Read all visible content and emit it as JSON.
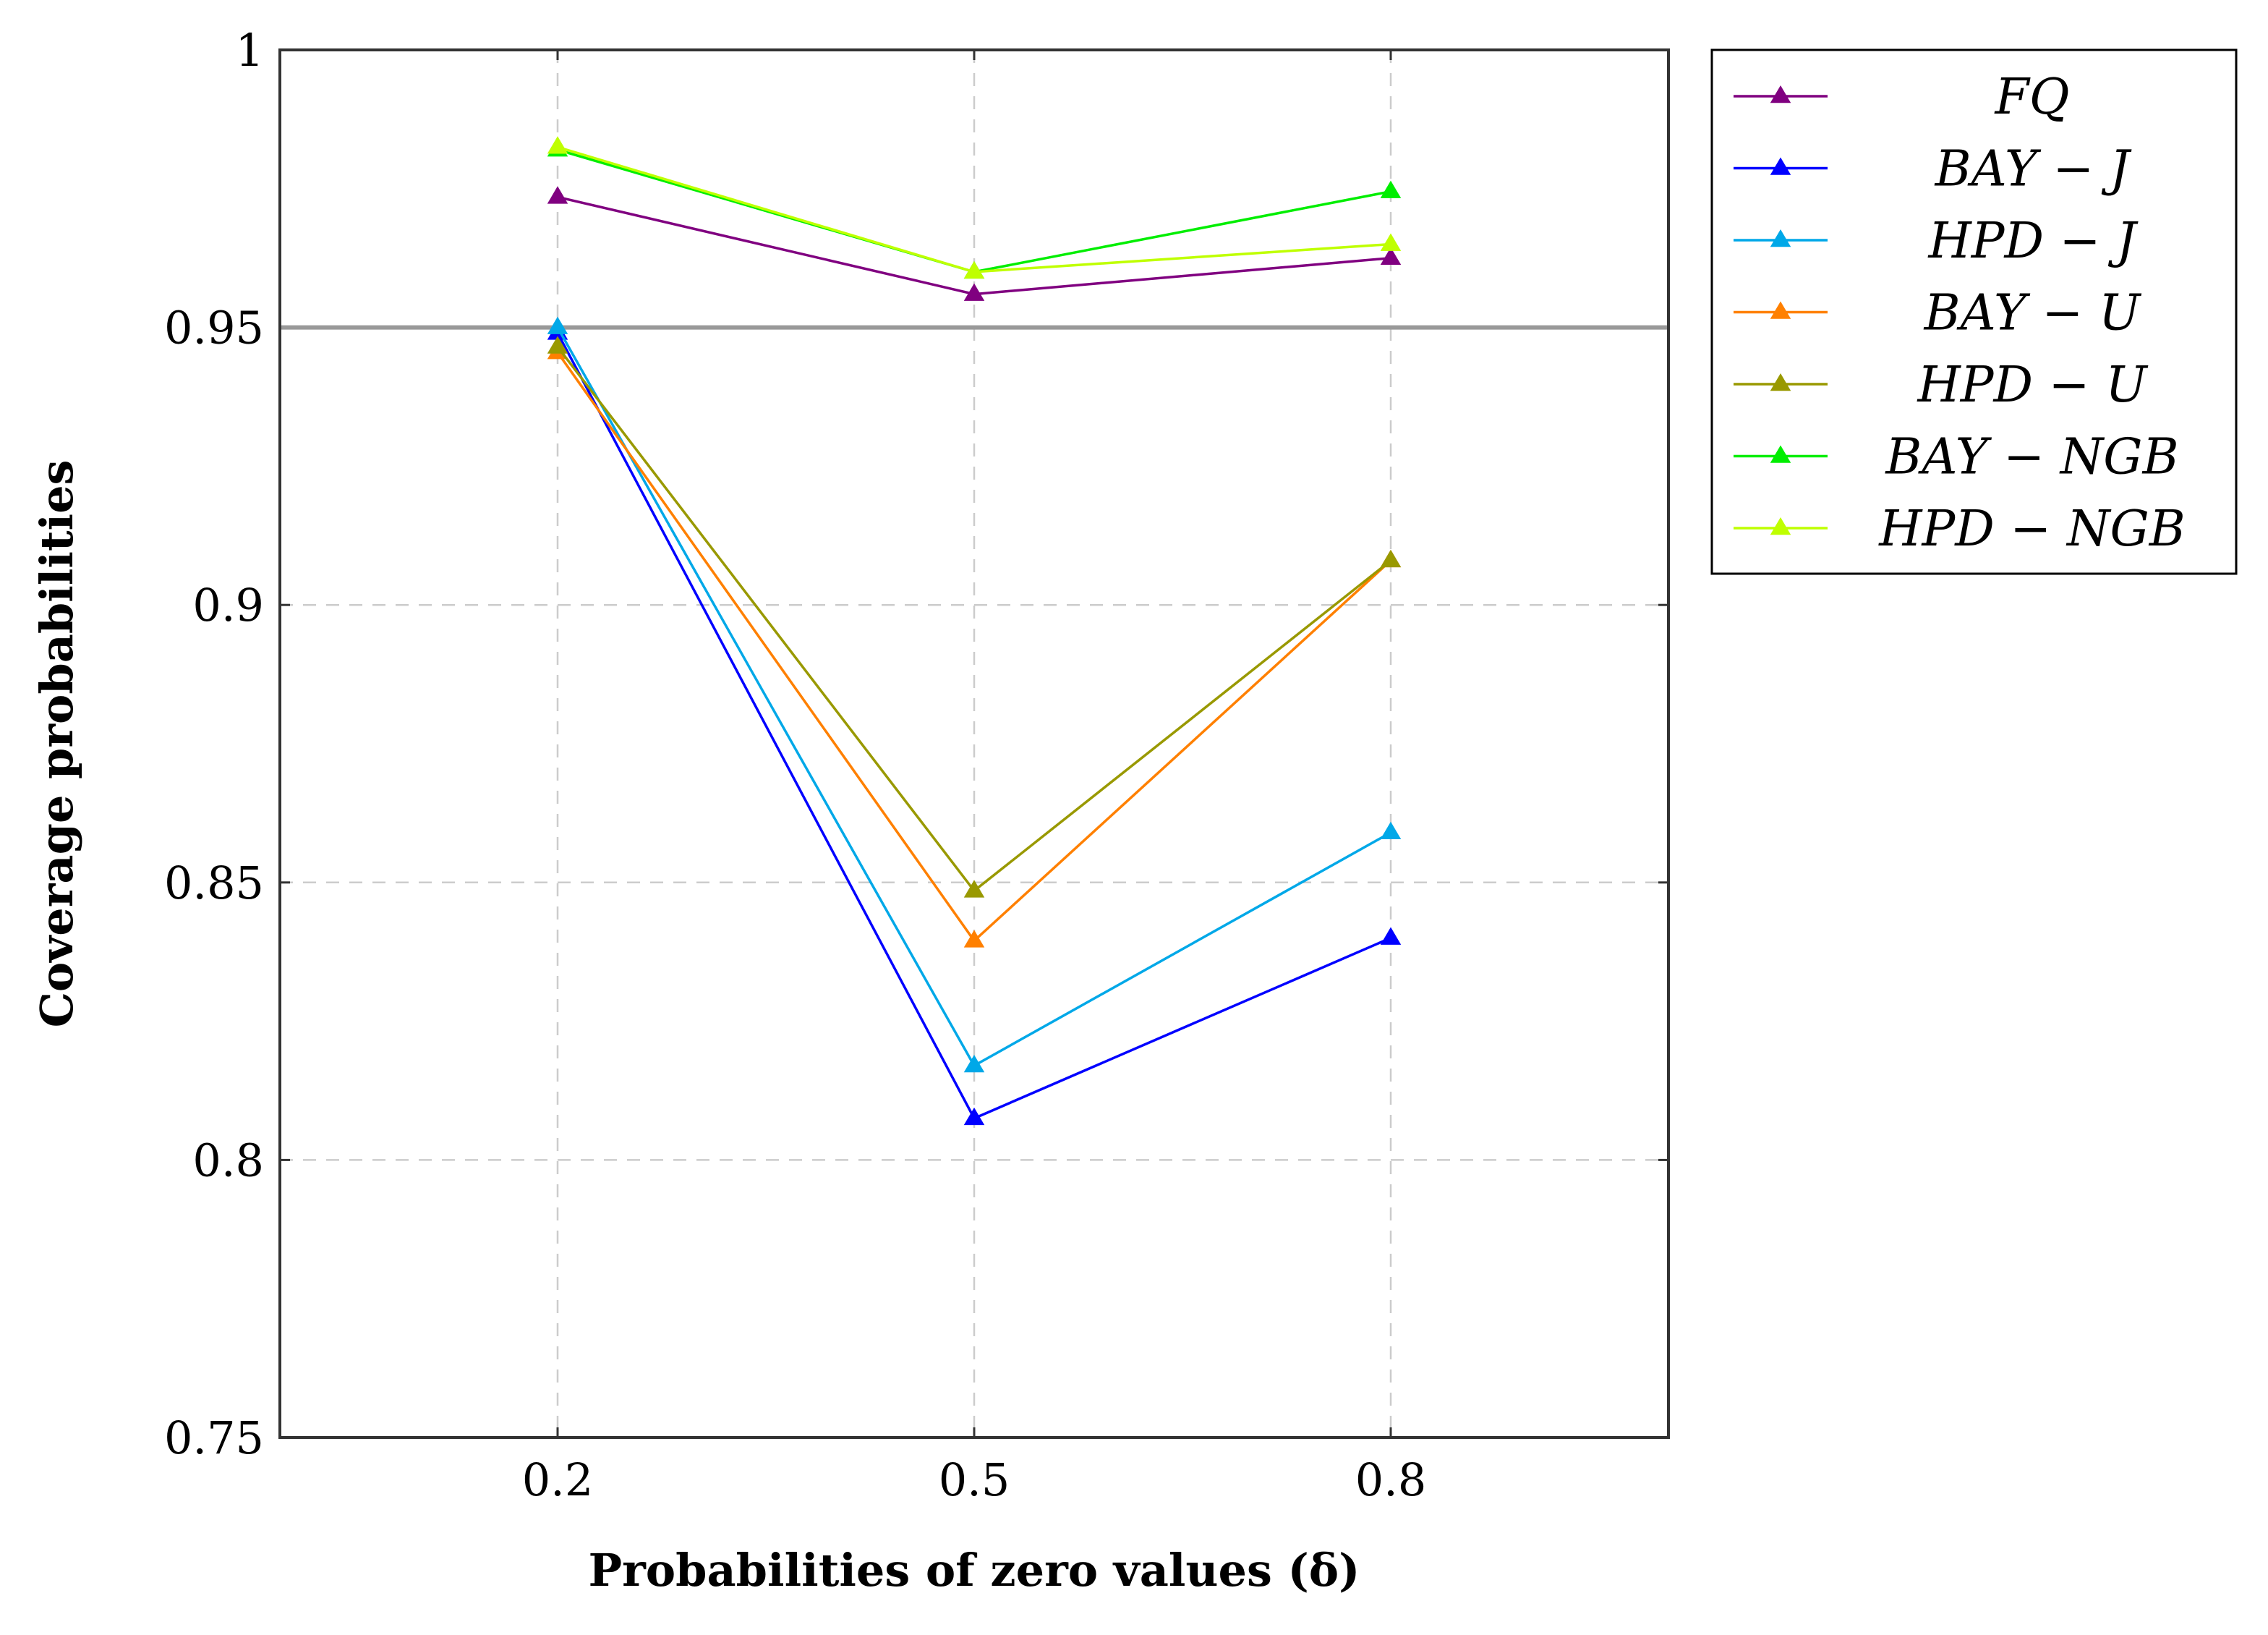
{
  "chart_data": {
    "type": "line",
    "x": [
      0.2,
      0.5,
      0.8
    ],
    "xticks": [
      "0.2",
      "0.5",
      "0.8"
    ],
    "yticks": [
      {
        "value": 0.75,
        "label": "0.75"
      },
      {
        "value": 0.8,
        "label": "0.8"
      },
      {
        "value": 0.85,
        "label": "0.85"
      },
      {
        "value": 0.9,
        "label": "0.9"
      },
      {
        "value": 0.95,
        "label": "0.95"
      },
      {
        "value": 1.0,
        "label": "1"
      }
    ],
    "xlim": [
      0.0,
      1.0
    ],
    "ylim": [
      0.75,
      1.0
    ],
    "xlabel": "Probabilities of zero values (δ)",
    "ylabel": "Coverage probabilities",
    "reference_line": {
      "y": 0.95,
      "color": "#999999"
    },
    "grid": true,
    "legend_position": "outside-right-top",
    "series": [
      {
        "name": "FQ",
        "label": "FQ",
        "color": "#800080",
        "values": [
          0.9735,
          0.956,
          0.9625
        ]
      },
      {
        "name": "BAY-J",
        "label": "BAY − J",
        "color": "#0000ff",
        "values": [
          0.949,
          0.8075,
          0.84
        ]
      },
      {
        "name": "HPD-J",
        "label": "HPD − J",
        "color": "#00a8e8",
        "values": [
          0.95,
          0.817,
          0.859
        ]
      },
      {
        "name": "BAY-U",
        "label": "BAY − U",
        "color": "#ff8000",
        "values": [
          0.9455,
          0.8395,
          0.908
        ]
      },
      {
        "name": "HPD-U",
        "label": "HPD − U",
        "color": "#999900",
        "values": [
          0.9465,
          0.8485,
          0.908
        ]
      },
      {
        "name": "BAY-NGB",
        "label": "BAY − NGB",
        "color": "#00ee00",
        "values": [
          0.982,
          0.96,
          0.9745
        ]
      },
      {
        "name": "HPD-NGB",
        "label": "HPD − NGB",
        "color": "#bfff00",
        "values": [
          0.9825,
          0.96,
          0.965
        ]
      }
    ]
  }
}
